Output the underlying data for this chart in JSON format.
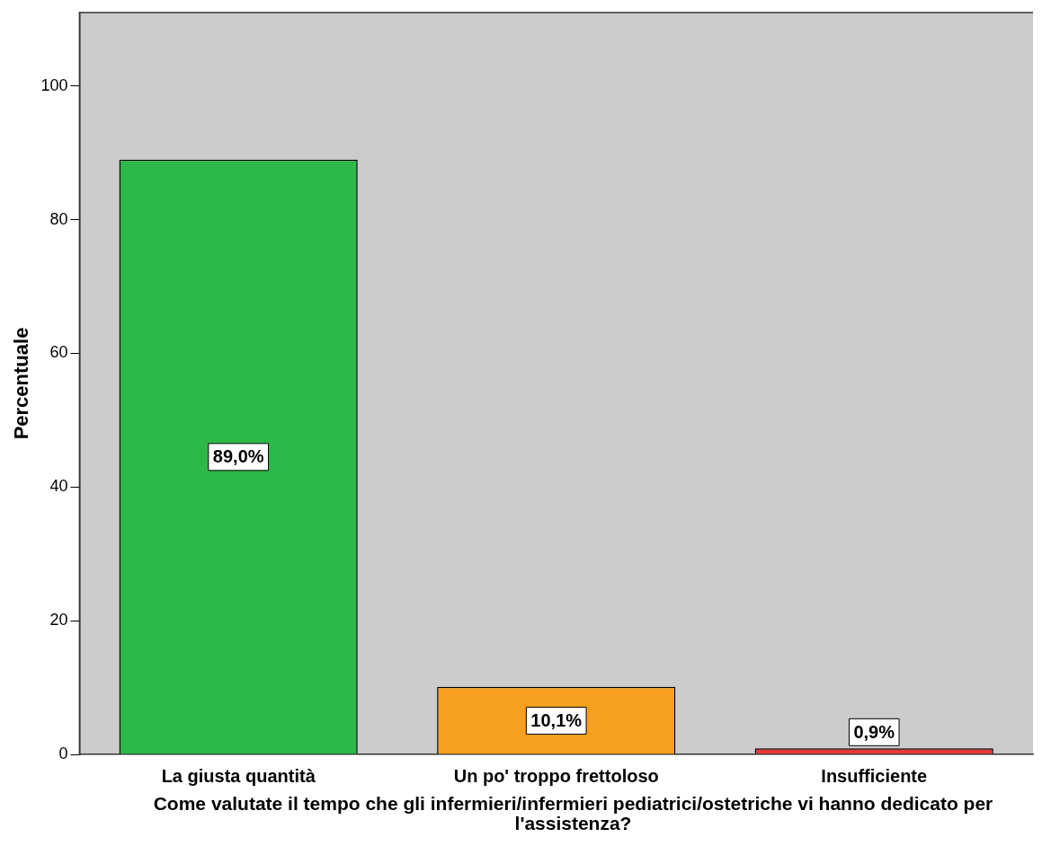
{
  "chart_data": {
    "type": "bar",
    "categories": [
      "La giusta quantità",
      "Un po' troppo frettoloso",
      "Insufficiente"
    ],
    "values": [
      89.0,
      10.1,
      0.9
    ],
    "colors": [
      "#2db84a",
      "#f7a021",
      "#e8393a"
    ],
    "value_labels": [
      "89,0%",
      "10,1%",
      "0,9%"
    ],
    "ylabel": "Percentuale",
    "xlabel": "Come valutate il tempo che gli infermieri/infermieri pediatrici/ostetriche vi hanno dedicato per l'assistenza?",
    "ylim": [
      0,
      111
    ],
    "yticks": [
      0,
      20,
      40,
      60,
      80,
      100
    ],
    "grid": false,
    "legend": false
  }
}
